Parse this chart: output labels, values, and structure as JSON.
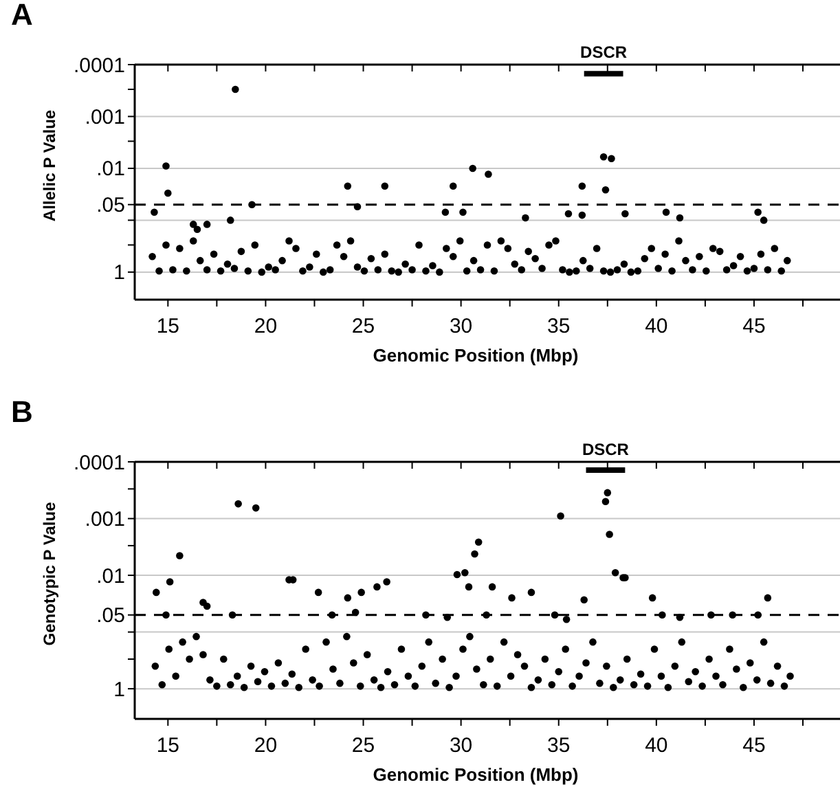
{
  "chart_data": [
    {
      "type": "scatter",
      "title": "A",
      "xlabel": "Genomic Position (Mbp)",
      "ylabel": "Allelic P Value",
      "log": "y",
      "grid": "y",
      "marker": "circle",
      "xlim": [
        13.3,
        49.4
      ],
      "xticks": [
        15,
        {
          "value": 17.5,
          "label": null
        },
        20,
        {
          "value": 22.5,
          "label": null
        },
        25,
        {
          "value": 27.5,
          "label": null
        },
        30,
        {
          "value": 32.5,
          "label": null
        },
        35,
        {
          "value": 37.5,
          "label": null
        },
        40,
        {
          "value": 42.5,
          "label": null
        },
        45,
        {
          "value": 47.5,
          "label": null
        }
      ],
      "ylim": [
        3.4,
        0.0001
      ],
      "yticks": [
        {
          "value": 0.0001,
          "label": ".0001"
        },
        {
          "value": 0.0003,
          "label": null
        },
        {
          "value": 0.001,
          "label": ".001"
        },
        {
          "value": 0.003,
          "label": null
        },
        {
          "value": 0.01,
          "label": ".01"
        },
        {
          "value": 0.05,
          "label": ".05"
        },
        {
          "value": 0.1,
          "label": null
        },
        {
          "value": 0.3,
          "label": null
        },
        {
          "value": 1,
          "label": "1"
        }
      ],
      "ref_lines": [
        {
          "axis": "y",
          "value": 0.05,
          "line_style": "dashed"
        }
      ],
      "series": [
        {
          "type": "line",
          "name": "DSCR",
          "color": "#000000",
          "marker": "none",
          "x": [
            36.3,
            38.3
          ],
          "values": [
            0.00015,
            0.00015
          ]
        },
        {
          "color": "#000000",
          "x": [
            14.3,
            14.9,
            15.0,
            18.45,
            19.3,
            24.2,
            24.7,
            26.1,
            29.6,
            29.2,
            30.1,
            30.6,
            31.4,
            36.2,
            37.3,
            37.7,
            37.4,
            35.5,
            38.4,
            40.5,
            41.2,
            45.2,
            45.5,
            16.3,
            17.0,
            18.2,
            16.5,
            33.3,
            36.2,
            14.2,
            14.55,
            14.9,
            15.25,
            15.6,
            15.95,
            16.3,
            16.65,
            17.0,
            17.35,
            17.7,
            18.05,
            18.4,
            18.75,
            19.1,
            19.45,
            19.8,
            20.15,
            20.5,
            20.85,
            21.2,
            21.55,
            21.9,
            22.25,
            22.6,
            22.95,
            23.3,
            23.65,
            24.0,
            24.35,
            24.7,
            25.05,
            25.4,
            25.75,
            26.1,
            26.45,
            26.8,
            27.15,
            27.5,
            27.85,
            28.2,
            28.55,
            28.9,
            29.25,
            29.6,
            29.95,
            30.3,
            30.65,
            31.0,
            31.35,
            31.7,
            32.05,
            32.4,
            32.75,
            33.1,
            33.45,
            33.8,
            34.15,
            34.5,
            34.85,
            35.2,
            35.55,
            35.9,
            36.25,
            36.6,
            36.95,
            37.3,
            37.65,
            38.0,
            38.35,
            38.7,
            39.05,
            39.4,
            39.75,
            40.1,
            40.45,
            40.8,
            41.15,
            41.5,
            41.85,
            42.2,
            42.55,
            42.9,
            43.25,
            43.6,
            43.95,
            44.3,
            44.65,
            45.0,
            45.35,
            45.7,
            46.05,
            46.4,
            46.7
          ],
          "values": [
            0.07,
            0.009,
            0.03,
            0.0003,
            0.05,
            0.022,
            0.055,
            0.022,
            0.022,
            0.07,
            0.07,
            0.01,
            0.013,
            0.022,
            0.006,
            0.0065,
            0.026,
            0.075,
            0.075,
            0.07,
            0.09,
            0.07,
            0.1,
            0.12,
            0.12,
            0.1,
            0.15,
            0.09,
            0.08,
            0.5,
            0.95,
            0.3,
            0.9,
            0.35,
            0.95,
            0.25,
            0.6,
            0.9,
            0.45,
            0.95,
            0.7,
            0.85,
            0.4,
            0.95,
            0.3,
            1,
            0.8,
            0.9,
            0.6,
            0.25,
            0.35,
            0.95,
            0.8,
            0.45,
            1,
            0.9,
            0.3,
            0.5,
            0.25,
            0.8,
            0.95,
            0.55,
            0.9,
            0.45,
            0.95,
            1,
            0.7,
            0.9,
            0.3,
            0.95,
            0.75,
            1,
            0.35,
            0.5,
            0.25,
            0.95,
            0.6,
            0.9,
            0.3,
            0.95,
            0.25,
            0.35,
            0.7,
            0.9,
            0.4,
            0.55,
            0.85,
            0.3,
            0.25,
            0.9,
            1,
            0.95,
            0.6,
            0.85,
            0.35,
            0.95,
            1,
            0.9,
            0.7,
            1,
            0.95,
            0.55,
            0.35,
            0.85,
            0.45,
            0.95,
            0.25,
            0.6,
            0.9,
            0.5,
            0.95,
            0.35,
            0.4,
            0.9,
            0.75,
            0.5,
            0.95,
            0.85,
            0.45,
            0.9,
            0.35,
            0.95,
            0.6
          ]
        }
      ]
    },
    {
      "type": "scatter",
      "title": "B",
      "xlabel": "Genomic Position (Mbp)",
      "ylabel": "Genotypic P Value",
      "log": "y",
      "grid": "y",
      "marker": "circle",
      "xlim": [
        13.3,
        49.4
      ],
      "xticks": [
        15,
        {
          "value": 17.5,
          "label": null
        },
        20,
        {
          "value": 22.5,
          "label": null
        },
        25,
        {
          "value": 27.5,
          "label": null
        },
        30,
        {
          "value": 32.5,
          "label": null
        },
        35,
        {
          "value": 37.5,
          "label": null
        },
        40,
        {
          "value": 42.5,
          "label": null
        },
        45,
        {
          "value": 47.5,
          "label": null
        }
      ],
      "ylim": [
        3.4,
        0.0001
      ],
      "yticks": [
        {
          "value": 0.0001,
          "label": ".0001"
        },
        {
          "value": 0.0003,
          "label": null
        },
        {
          "value": 0.001,
          "label": ".001"
        },
        {
          "value": 0.003,
          "label": null
        },
        {
          "value": 0.01,
          "label": ".01"
        },
        {
          "value": 0.05,
          "label": ".05"
        },
        {
          "value": 0.1,
          "label": null
        },
        {
          "value": 0.3,
          "label": null
        },
        {
          "value": 1,
          "label": "1"
        }
      ],
      "ref_lines": [
        {
          "axis": "y",
          "value": 0.05,
          "line_style": "dashed"
        }
      ],
      "series": [
        {
          "type": "line",
          "name": "DSCR",
          "color": "#000000",
          "marker": "none",
          "x": [
            36.4,
            38.4
          ],
          "values": [
            0.00014,
            0.00014
          ]
        },
        {
          "color": "#000000",
          "x": [
            14.4,
            15.1,
            15.6,
            18.6,
            19.5,
            21.2,
            21.4,
            22.7,
            24.2,
            24.9,
            25.7,
            26.2,
            29.8,
            30.2,
            30.4,
            30.7,
            30.9,
            31.6,
            32.6,
            33.6,
            35.1,
            37.4,
            37.5,
            37.6,
            37.9,
            38.3,
            38.4,
            36.3,
            39.8,
            45.7,
            16.8,
            17.0,
            14.9,
            18.3,
            23.4,
            24.6,
            28.2,
            29.3,
            31.3,
            34.8,
            35.4,
            40.3,
            41.2,
            42.8,
            43.9,
            45.2,
            14.35,
            14.7,
            15.05,
            15.4,
            15.75,
            16.1,
            16.45,
            16.8,
            17.15,
            17.5,
            17.85,
            18.2,
            18.55,
            18.9,
            19.25,
            19.6,
            19.95,
            20.3,
            20.65,
            21.0,
            21.35,
            21.7,
            22.05,
            22.4,
            22.75,
            23.1,
            23.45,
            23.8,
            24.15,
            24.5,
            24.85,
            25.2,
            25.55,
            25.9,
            26.25,
            26.6,
            26.95,
            27.3,
            27.65,
            28.0,
            28.35,
            28.7,
            29.05,
            29.4,
            29.75,
            30.1,
            30.45,
            30.8,
            31.15,
            31.5,
            31.85,
            32.2,
            32.55,
            32.9,
            33.25,
            33.6,
            33.95,
            34.3,
            34.65,
            35.0,
            35.35,
            35.7,
            36.05,
            36.4,
            36.75,
            37.1,
            37.45,
            37.8,
            38.15,
            38.5,
            38.85,
            39.2,
            39.55,
            39.9,
            40.25,
            40.6,
            40.95,
            41.3,
            41.65,
            42.0,
            42.35,
            42.7,
            43.05,
            43.4,
            43.75,
            44.1,
            44.45,
            44.8,
            45.15,
            45.5,
            45.85,
            46.2,
            46.55,
            46.85
          ],
          "values": [
            0.02,
            0.013,
            0.0045,
            0.00055,
            0.00065,
            0.012,
            0.012,
            0.02,
            0.025,
            0.02,
            0.016,
            0.013,
            0.0097,
            0.009,
            0.016,
            0.0042,
            0.0026,
            0.016,
            0.025,
            0.02,
            0.0009,
            0.0005,
            0.00035,
            0.0019,
            0.009,
            0.011,
            0.011,
            0.027,
            0.025,
            0.025,
            0.03,
            0.035,
            0.05,
            0.05,
            0.05,
            0.045,
            0.05,
            0.055,
            0.05,
            0.05,
            0.06,
            0.05,
            0.055,
            0.05,
            0.05,
            0.05,
            0.4,
            0.85,
            0.2,
            0.6,
            0.15,
            0.3,
            0.12,
            0.25,
            0.7,
            0.9,
            0.3,
            0.85,
            0.6,
            0.95,
            0.4,
            0.75,
            0.5,
            0.9,
            0.35,
            0.8,
            0.55,
            0.95,
            0.2,
            0.7,
            0.9,
            0.15,
            0.45,
            0.8,
            0.12,
            0.35,
            0.9,
            0.25,
            0.7,
            0.95,
            0.5,
            0.85,
            0.2,
            0.6,
            0.9,
            0.4,
            0.15,
            0.8,
            0.3,
            0.95,
            0.6,
            0.2,
            0.12,
            0.45,
            0.85,
            0.3,
            0.9,
            0.15,
            0.6,
            0.25,
            0.4,
            0.95,
            0.7,
            0.3,
            0.85,
            0.5,
            0.2,
            0.9,
            0.6,
            0.35,
            0.15,
            0.8,
            0.4,
            0.95,
            0.7,
            0.3,
            0.85,
            0.55,
            0.9,
            0.2,
            0.6,
            0.95,
            0.4,
            0.15,
            0.75,
            0.5,
            0.9,
            0.3,
            0.6,
            0.85,
            0.2,
            0.45,
            0.95,
            0.35,
            0.7,
            0.15,
            0.8,
            0.4,
            0.9,
            0.6
          ]
        }
      ]
    }
  ]
}
